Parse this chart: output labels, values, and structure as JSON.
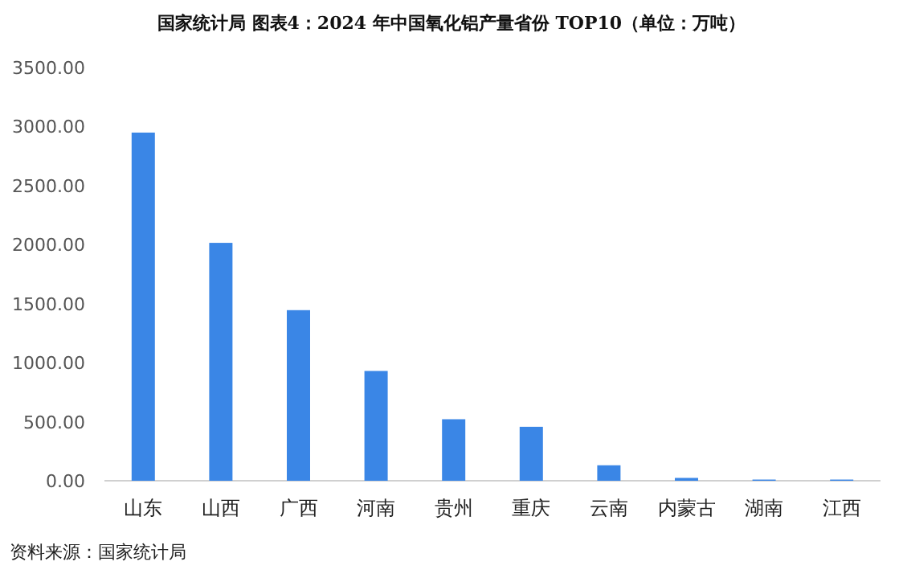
{
  "chart_data": {
    "type": "bar",
    "title": "国家统计局  图表4：2024 年中国氧化铝产量省份 TOP10（单位：万吨）",
    "categories": [
      "山东",
      "山西",
      "广西",
      "河南",
      "贵州",
      "重庆",
      "云南",
      "内蒙古",
      "湖南",
      "江西"
    ],
    "values": [
      2949,
      2015,
      1445,
      930,
      521,
      457,
      131,
      24,
      10,
      10
    ],
    "color": "#3a86e6",
    "ylim": [
      0,
      3500
    ],
    "yticks": [
      {
        "value": 0,
        "label": "0.00"
      },
      {
        "value": 500,
        "label": "500.00"
      },
      {
        "value": 1000,
        "label": "1000.00"
      },
      {
        "value": 1500,
        "label": "1500.00"
      },
      {
        "value": 2000,
        "label": "2000.00"
      },
      {
        "value": 2500,
        "label": "2500.00"
      },
      {
        "value": 3000,
        "label": "3000.00"
      },
      {
        "value": 3500,
        "label": "3500.00"
      }
    ],
    "annotations": [
      "资料来源：国家统计局"
    ]
  }
}
